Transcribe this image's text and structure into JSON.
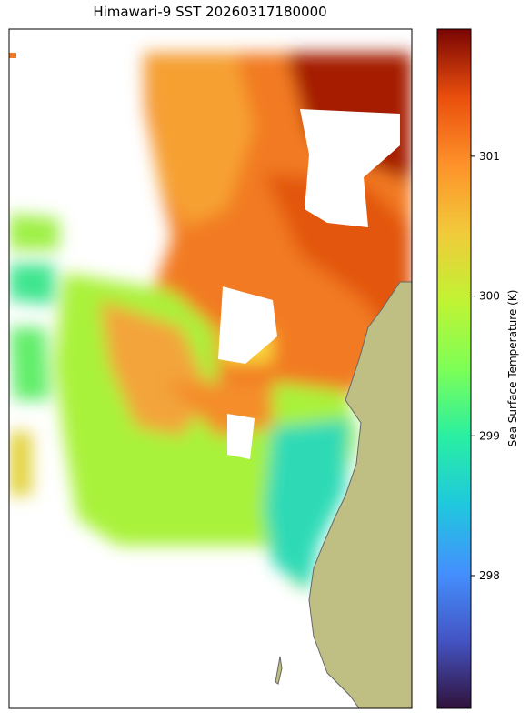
{
  "title": "Himawari-9 SST 20260317180000",
  "colorbar": {
    "label": "Sea Surface Temperature (K)",
    "lim": [
      297.05,
      301.91
    ],
    "ticks": [
      298,
      299,
      300,
      301
    ]
  }
}
